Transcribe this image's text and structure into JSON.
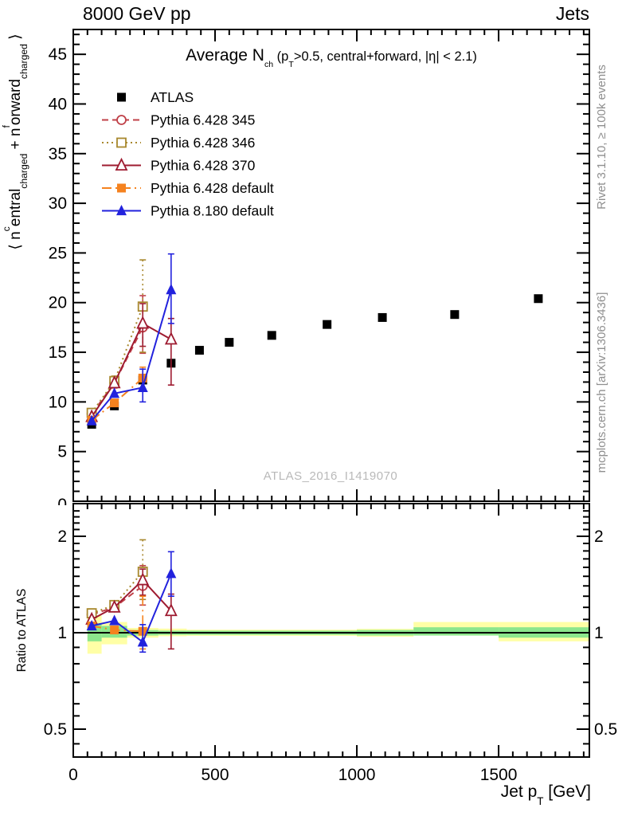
{
  "header": {
    "left": "8000 GeV pp",
    "right": "Jets"
  },
  "plot_title": {
    "pieces": [
      {
        "t": "Average N",
        "cls": "big"
      },
      {
        "sub": "ch"
      },
      {
        "t": " (p"
      },
      {
        "sub": "T"
      },
      {
        "t": ">0.5, central+forward, |η| < 2.1)"
      }
    ]
  },
  "watermark": "ATLAS_2016_I1419070",
  "side_notes": {
    "top": "Rivet 3.1.10, ≥ 100k events",
    "bottom": "mcplots.cern.ch [arXiv:1306.3436]"
  },
  "axes": {
    "x": {
      "label_pieces": [
        {
          "t": "Jet p"
        },
        {
          "sub": "T"
        },
        {
          "t": " [GeV]"
        }
      ],
      "min": 0,
      "max": 1820,
      "major_ticks": [
        500,
        1000,
        1500
      ],
      "major_labels": [
        "0",
        "500",
        "1000",
        "1500"
      ],
      "minor_step": 50
    },
    "y_main": {
      "label_pieces": [
        {
          "t": "⟨ n"
        },
        {
          "sup": "c"
        },
        {
          "t": "entral"
        },
        {
          "sub": "charged"
        },
        {
          "t": " + n"
        },
        {
          "sup": "f"
        },
        {
          "t": "orward"
        },
        {
          "sub": "charged"
        },
        {
          "t": " ⟩"
        }
      ],
      "min": 0,
      "max": 47.5,
      "major_step": 5,
      "minor_step": 1,
      "major_labels": [
        "5",
        "10",
        "15",
        "20",
        "25",
        "30",
        "35",
        "40",
        "45"
      ],
      "clipped_zero_label": "0"
    },
    "y_ratio": {
      "label": "Ratio to ATLAS",
      "scale": "log",
      "majors": [
        0.5,
        1,
        2
      ],
      "major_labels": [
        "0.5",
        "1",
        "2"
      ],
      "minors": [
        0.45,
        0.55,
        0.6,
        0.7,
        0.8,
        0.9,
        1.1,
        1.2,
        1.3,
        1.4,
        1.5,
        1.6,
        1.7,
        1.8,
        1.9,
        2.1,
        2.2,
        2.3,
        2.4
      ]
    }
  },
  "chart_data": {
    "type": "scatter",
    "title": "Average Nch (pT>0.5, central+forward, |eta| < 2.1)",
    "xlabel": "Jet pT [GeV]",
    "ylabel_top": "< n_central_charged + n_forward_charged >",
    "ylabel_bottom": "Ratio to ATLAS",
    "x_range": [
      0,
      1820
    ],
    "y_main_range": [
      0,
      47.5
    ],
    "y_ratio_range": [
      0.41,
      2.5
    ],
    "ratio_reference": 1,
    "band_colors": {
      "yellow": "#ffffa6",
      "green": "#8ce68c"
    },
    "ratio_bands": [
      {
        "x": [
          50,
          100
        ],
        "yellow": [
          0.86,
          1.13
        ],
        "green": [
          0.94,
          1.07
        ]
      },
      {
        "x": [
          100,
          190
        ],
        "yellow": [
          0.92,
          1.08
        ],
        "green": [
          0.965,
          1.05
        ]
      },
      {
        "x": [
          190,
          300
        ],
        "yellow": [
          0.965,
          1.035
        ],
        "green": [
          0.98,
          1.02
        ]
      },
      {
        "x": [
          300,
          400
        ],
        "yellow": [
          0.975,
          1.03
        ],
        "green": [
          0.985,
          1.015
        ]
      },
      {
        "x": [
          400,
          1000
        ],
        "yellow": [
          0.978,
          1.022
        ],
        "green": [
          0.985,
          1.015
        ]
      },
      {
        "x": [
          1000,
          1200
        ],
        "yellow": [
          0.972,
          1.028
        ],
        "green": [
          0.98,
          1.02
        ]
      },
      {
        "x": [
          1200,
          1500
        ],
        "yellow": [
          0.98,
          1.08
        ],
        "green": [
          0.98,
          1.04
        ]
      },
      {
        "x": [
          1500,
          1820
        ],
        "yellow": [
          0.94,
          1.08
        ],
        "green": [
          0.965,
          1.04
        ]
      }
    ],
    "series": [
      {
        "name": "ATLAS",
        "color": "#000000",
        "line": "none",
        "marker": {
          "shape": "square",
          "filled": true
        },
        "points": [
          [
            65,
            7.75
          ],
          [
            145,
            9.6
          ],
          [
            245,
            12.2
          ],
          [
            345,
            13.9
          ],
          [
            445,
            15.2
          ],
          [
            550,
            16.0
          ],
          [
            700,
            16.7
          ],
          [
            895,
            17.8
          ],
          [
            1090,
            18.5
          ],
          [
            1345,
            18.8
          ],
          [
            1640,
            20.4
          ]
        ],
        "ratio_points": []
      },
      {
        "name": "Pythia 6.428 345",
        "color": "#c04048",
        "line": "dashed",
        "marker": {
          "shape": "circle",
          "filled": false
        },
        "points": [
          [
            65,
            8.8
          ],
          [
            145,
            11.9,
            11.4,
            12.4
          ],
          [
            245,
            17.5,
            14.9,
            20.7
          ]
        ],
        "ratio_points": [
          [
            65,
            1.14
          ],
          [
            145,
            1.2
          ],
          [
            245,
            1.4,
            1.22,
            1.62
          ]
        ]
      },
      {
        "name": "Pythia 6.428 346",
        "color": "#a8882e",
        "line": "dotted",
        "marker": {
          "shape": "square",
          "filled": false
        },
        "points": [
          [
            65,
            8.9
          ],
          [
            145,
            12.1,
            11.6,
            12.6
          ],
          [
            245,
            19.6,
            15.0,
            24.3
          ]
        ],
        "ratio_points": [
          [
            65,
            1.15
          ],
          [
            145,
            1.22
          ],
          [
            245,
            1.55,
            1.27,
            1.95
          ]
        ]
      },
      {
        "name": "Pythia 6.428 370",
        "color": "#9e1b30",
        "line": "solid",
        "marker": {
          "shape": "triangle",
          "filled": false
        },
        "points": [
          [
            65,
            8.5
          ],
          [
            145,
            11.9
          ],
          [
            245,
            17.9,
            15.6,
            19.9
          ],
          [
            345,
            16.3,
            11.7,
            18.4
          ]
        ],
        "ratio_points": [
          [
            65,
            1.1
          ],
          [
            145,
            1.2
          ],
          [
            245,
            1.46,
            1.31,
            1.58
          ],
          [
            345,
            1.17,
            0.89,
            1.32
          ]
        ]
      },
      {
        "name": "Pythia 6.428 default",
        "color": "#f5821f",
        "line": "dashdot",
        "marker": {
          "shape": "square",
          "filled": true
        },
        "points": [
          [
            65,
            8.15
          ],
          [
            145,
            9.9
          ],
          [
            245,
            12.4,
            11.3,
            13.5
          ]
        ],
        "ratio_points": [
          [
            65,
            1.05
          ],
          [
            145,
            1.02
          ],
          [
            245,
            1.01,
            0.89,
            1.3
          ]
        ]
      },
      {
        "name": "Pythia 8.180 default",
        "color": "#2222dd",
        "line": "solid",
        "marker": {
          "shape": "triangle",
          "filled": true
        },
        "points": [
          [
            65,
            8.1
          ],
          [
            145,
            10.85
          ],
          [
            245,
            11.45,
            10.0,
            13.3
          ],
          [
            345,
            21.3,
            17.9,
            24.9
          ]
        ],
        "ratio_points": [
          [
            65,
            1.05
          ],
          [
            145,
            1.09
          ],
          [
            245,
            0.935,
            0.87,
            1.06
          ],
          [
            345,
            1.53,
            1.3,
            1.79
          ]
        ]
      }
    ]
  }
}
